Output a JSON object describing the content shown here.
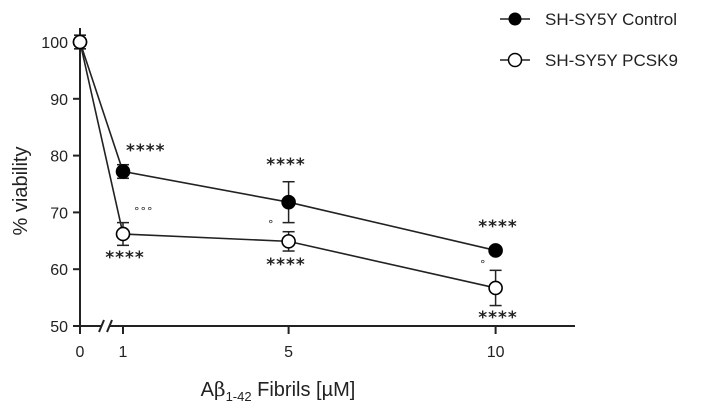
{
  "chart_data": {
    "type": "line",
    "x": [
      0,
      1,
      5,
      10
    ],
    "xticks": [
      "0",
      "1",
      "5",
      "10"
    ],
    "yticks": [
      "50",
      "60",
      "70",
      "80",
      "90",
      "100"
    ],
    "ylim": [
      50,
      100
    ],
    "xlabel_prefix": "A",
    "xlabel_beta": "β",
    "xlabel_sub": "1-42",
    "xlabel_suffix": " Fibrils [µM]",
    "ylabel": "% viability",
    "legend_position": "top-right",
    "series": [
      {
        "name": "SH-SY5Y Control",
        "marker": "filled-circle",
        "color": "#000000",
        "values": [
          100,
          77.2,
          71.8,
          63.3
        ],
        "errors": [
          1.2,
          1.2,
          3.6,
          0.5
        ],
        "significance": [
          "",
          "****",
          "****",
          "****"
        ]
      },
      {
        "name": "SH-SY5Y PCSK9",
        "marker": "open-circle",
        "color": "#000000",
        "values": [
          100,
          66.2,
          64.9,
          56.7
        ],
        "errors": [
          1.2,
          2.0,
          1.7,
          3.1
        ],
        "significance": [
          "",
          "****",
          "****",
          "****"
        ],
        "vs_control": [
          "",
          "°°°",
          "°",
          "°"
        ]
      }
    ]
  }
}
